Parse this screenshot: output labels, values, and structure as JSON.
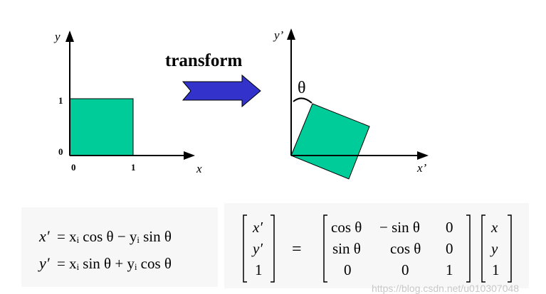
{
  "left_plot": {
    "y_label": "y",
    "x_label": "x",
    "y_tick_1": "1",
    "y_tick_0": "0",
    "x_tick_0": "0",
    "x_tick_1": "1"
  },
  "transform_label": "transform",
  "right_plot": {
    "y_label": "y’",
    "x_label": "x’",
    "angle_label": "θ"
  },
  "equations": {
    "line1_lhs": "x′",
    "line1_rhs": "= xᵢ cos θ − yᵢ sin θ",
    "line2_lhs": "y′",
    "line2_rhs": "= xᵢ sin θ + yᵢ cos θ"
  },
  "matrix": {
    "lhs": [
      "x′",
      "y′",
      "1"
    ],
    "equals": "=",
    "rows": [
      [
        "cos θ",
        "− sin θ",
        "0"
      ],
      [
        "sin θ",
        "cos θ",
        "0"
      ],
      [
        "0",
        "0",
        "1"
      ]
    ],
    "rhs": [
      "x",
      "y",
      "1"
    ]
  },
  "colors": {
    "square": "#00cc99",
    "arrow": "#3333cc"
  },
  "watermark": "https://blog.csdn.net/u010307048"
}
